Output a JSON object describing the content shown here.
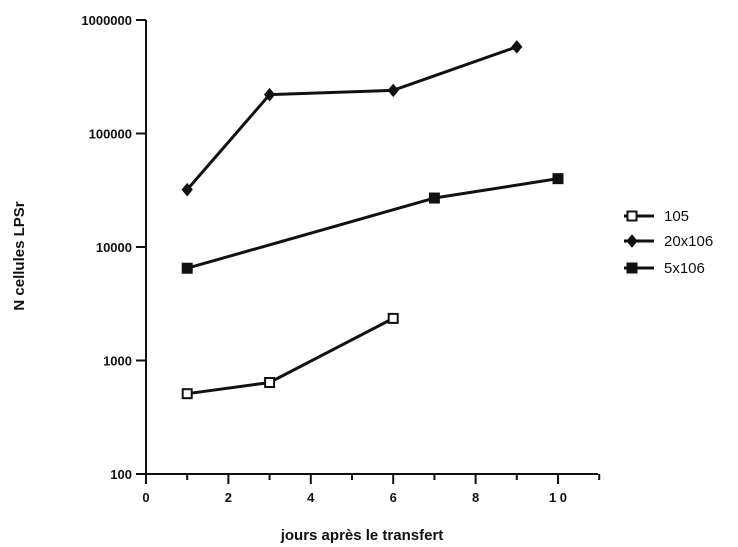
{
  "chart_data": {
    "type": "line",
    "title": "",
    "xlabel": "jours après le transfert",
    "ylabel": "N cellules LPSr",
    "y_scale": "log",
    "xlim": [
      0,
      11
    ],
    "ylim": [
      100,
      1000000
    ],
    "x_ticks": [
      0,
      2,
      4,
      6,
      8,
      10
    ],
    "x_tick_labels": [
      "0",
      "2",
      "4",
      "6",
      "8",
      "1 0"
    ],
    "y_ticks": [
      100,
      1000,
      10000,
      100000,
      1000000
    ],
    "y_tick_labels": [
      "100",
      "1000",
      "10000",
      "100000",
      "1000000"
    ],
    "grid": false,
    "legend_position": "right",
    "series": [
      {
        "name": "105",
        "marker": "open-square",
        "color": "#111111",
        "points": [
          [
            1,
            510
          ],
          [
            3,
            640
          ],
          [
            6,
            2350
          ]
        ]
      },
      {
        "name": "20x106",
        "marker": "diamond",
        "color": "#111111",
        "points": [
          [
            1,
            32000
          ],
          [
            3,
            220000
          ],
          [
            6,
            240000
          ],
          [
            9,
            580000
          ]
        ]
      },
      {
        "name": "5x106",
        "marker": "filled-square",
        "color": "#111111",
        "points": [
          [
            1,
            6500
          ],
          [
            7,
            27000
          ],
          [
            10,
            40000
          ]
        ]
      }
    ]
  }
}
